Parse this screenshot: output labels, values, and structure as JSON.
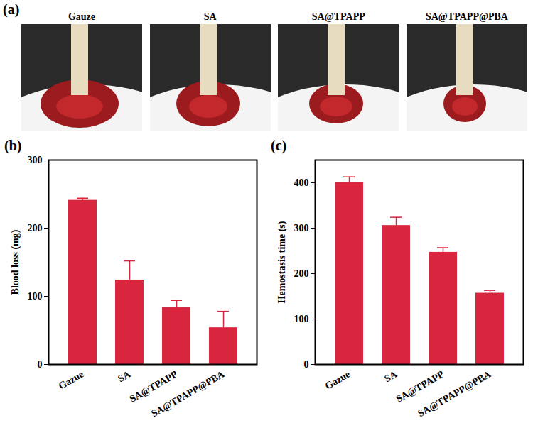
{
  "panel_a": {
    "panel_label": "(a)",
    "captions": [
      "Gauze",
      "SA",
      "SA@TPAPP",
      "SA@TPAPP@PBA"
    ]
  },
  "chart_data": [
    {
      "type": "bar",
      "panel_label": "(b)",
      "y_label": "Blood loss (mg)",
      "categories": [
        "Gazue",
        "SA",
        "SA@TPAPP",
        "SA@TPAPP@PBA"
      ],
      "values": [
        241,
        124,
        84,
        54
      ],
      "errors": [
        3,
        28,
        10,
        24
      ],
      "color": "#d7263d",
      "ylim": [
        0,
        300
      ],
      "yticks": [
        0,
        100,
        200,
        300
      ]
    },
    {
      "type": "bar",
      "panel_label": "(c)",
      "y_label": "Hemostasis time (s)",
      "categories": [
        "Gazue",
        "SA",
        "SA@TPAPP",
        "SA@TPAPP@PBA"
      ],
      "values": [
        401,
        306,
        247,
        157
      ],
      "errors": [
        12,
        18,
        10,
        6
      ],
      "color": "#d7263d",
      "ylim": [
        0,
        450
      ],
      "yticks": [
        0,
        100,
        200,
        300,
        400
      ]
    }
  ]
}
